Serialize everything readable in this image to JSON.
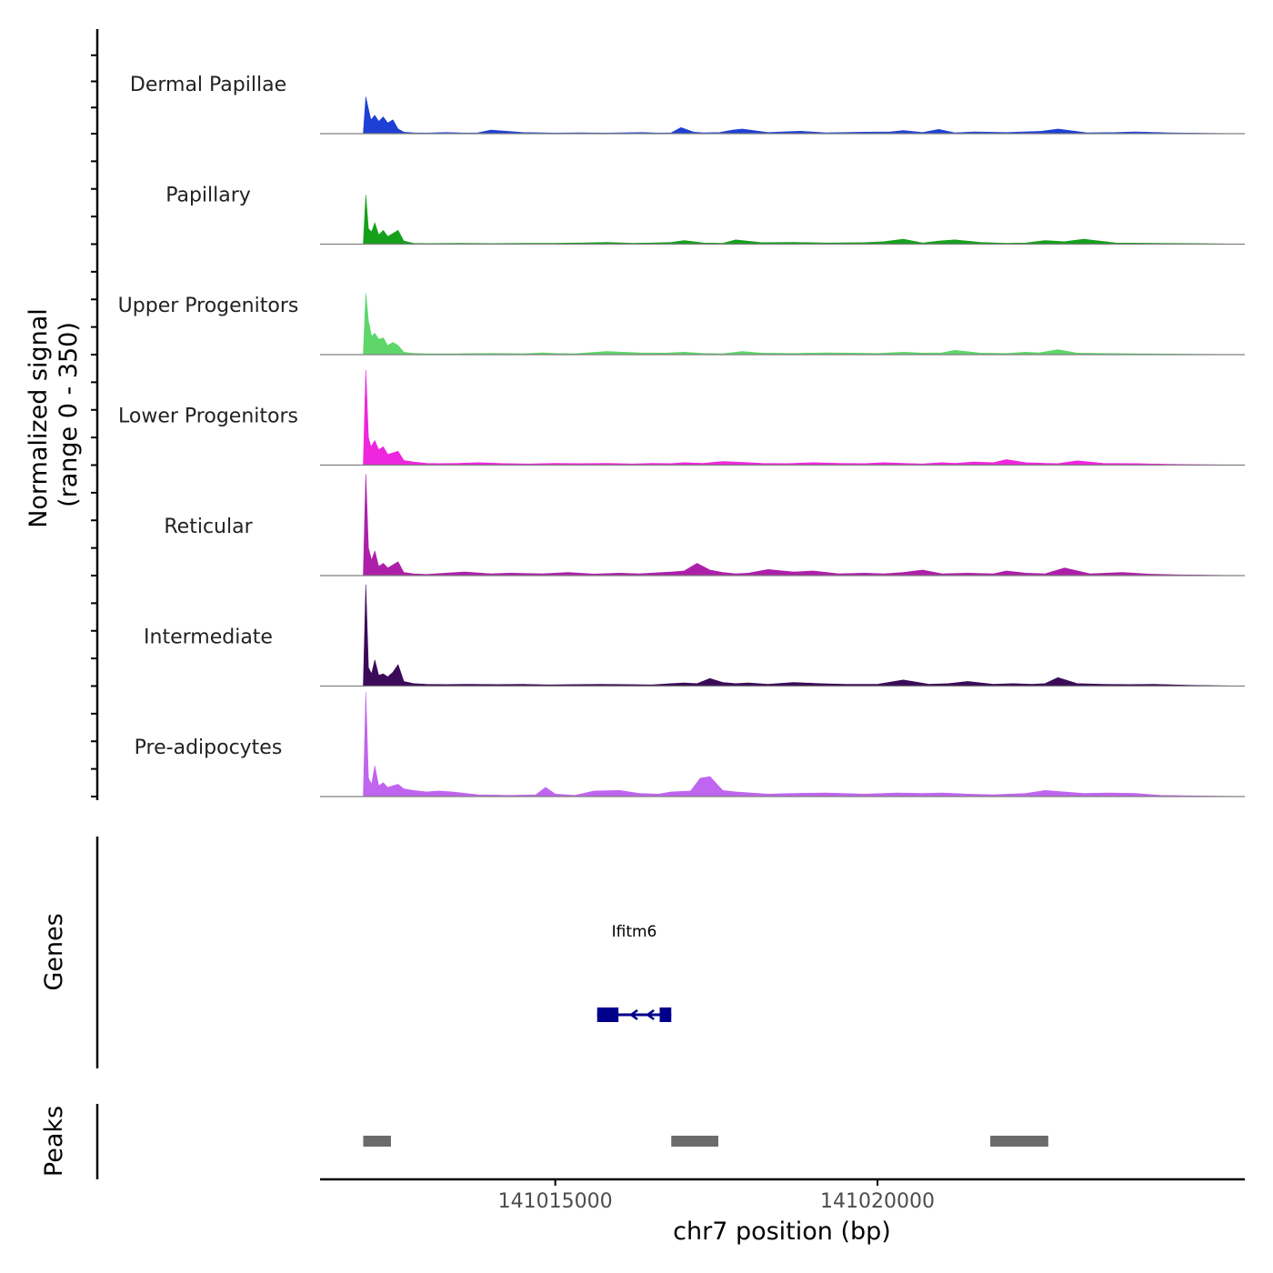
{
  "chart_data": {
    "type": "area",
    "title": "",
    "chromosome": "chr7",
    "xlabel": "chr7 position (bp)",
    "ylabel": "Normalized signal",
    "ylabel_range": "(range 0 - 350)",
    "xlim": [
      141011350,
      141025700
    ],
    "ylim": [
      0,
      350
    ],
    "x_ticks": [
      141015000,
      141020000
    ],
    "x_tick_labels": [
      "141015000",
      "141020000"
    ],
    "series": [
      {
        "name": "Dermal Papillae",
        "color": "#1f40d4",
        "x": [
          141012020,
          141012060,
          141012100,
          141012140,
          141012200,
          141012260,
          141012330,
          141012400,
          141012480,
          141012560,
          141012650,
          141012800,
          141013000,
          141013300,
          141013650,
          141013800,
          141014000,
          141014500,
          141014800,
          141015000,
          141015400,
          141015800,
          141016350,
          141016600,
          141016800,
          141016950,
          141017150,
          141017300,
          141017550,
          141017750,
          141017900,
          141018300,
          141018800,
          141019200,
          141019800,
          141020200,
          141020400,
          141020700,
          141020950,
          141021200,
          141021500,
          141022000,
          141022550,
          141022800,
          141023250,
          141023700,
          141024000,
          141024500,
          141025700
        ],
        "values": [
          0,
          120,
          80,
          45,
          60,
          40,
          55,
          35,
          45,
          15,
          5,
          3,
          2,
          4,
          2,
          3,
          12,
          4,
          3,
          2,
          3,
          2,
          4,
          2,
          3,
          20,
          5,
          3,
          4,
          12,
          15,
          4,
          8,
          3,
          5,
          6,
          10,
          4,
          14,
          3,
          6,
          4,
          8,
          15,
          3,
          4,
          6,
          3,
          0
        ]
      },
      {
        "name": "Papillary",
        "color": "#15a01b",
        "x": [
          141012020,
          141012060,
          141012100,
          141012150,
          141012200,
          141012260,
          141012330,
          141012400,
          141012480,
          141012560,
          141012650,
          141012800,
          141013000,
          141013500,
          141014000,
          141014500,
          141015000,
          141015400,
          141015800,
          141016200,
          141016500,
          141016800,
          141017000,
          141017300,
          141017600,
          141017800,
          141018200,
          141018700,
          141019200,
          141019800,
          141020100,
          141020400,
          141020700,
          141020950,
          141021200,
          141021600,
          141022000,
          141022300,
          141022600,
          141022900,
          141023200,
          141023700,
          141024300,
          141024900,
          141025700
        ],
        "values": [
          0,
          160,
          50,
          40,
          70,
          30,
          45,
          25,
          35,
          45,
          10,
          3,
          2,
          3,
          2,
          3,
          3,
          4,
          6,
          3,
          4,
          6,
          12,
          4,
          3,
          14,
          5,
          6,
          4,
          5,
          8,
          16,
          4,
          10,
          14,
          6,
          3,
          4,
          12,
          8,
          16,
          4,
          3,
          2,
          0
        ]
      },
      {
        "name": "Upper Progenitors",
        "color": "#5ed66a",
        "x": [
          141012020,
          141012060,
          141012100,
          141012150,
          141012200,
          141012260,
          141012330,
          141012400,
          141012480,
          141012560,
          141012650,
          141012800,
          141013000,
          141013500,
          141014000,
          141014500,
          141014800,
          141015000,
          141015300,
          141015800,
          141016300,
          141016700,
          141017000,
          141017300,
          141017600,
          141017900,
          141018200,
          141018700,
          141019200,
          141019600,
          141020000,
          141020400,
          141020700,
          141021000,
          141021200,
          141021600,
          141022000,
          141022300,
          141022500,
          141022800,
          141023100,
          141023500,
          141024000,
          141024500,
          141025700
        ],
        "values": [
          0,
          200,
          110,
          60,
          70,
          50,
          55,
          30,
          40,
          30,
          8,
          4,
          3,
          3,
          4,
          3,
          6,
          4,
          3,
          10,
          6,
          5,
          8,
          4,
          3,
          10,
          5,
          4,
          6,
          5,
          4,
          8,
          5,
          6,
          14,
          5,
          4,
          8,
          6,
          16,
          5,
          4,
          3,
          2,
          0
        ]
      },
      {
        "name": "Lower Progenitors",
        "color": "#ee26de",
        "x": [
          141012020,
          141012060,
          141012100,
          141012140,
          141012200,
          141012260,
          141012330,
          141012400,
          141012480,
          141012560,
          141012650,
          141012800,
          141013000,
          141013200,
          141013500,
          141013800,
          141014200,
          141014600,
          141015000,
          141015400,
          141015800,
          141016200,
          141016500,
          141016800,
          141017000,
          141017300,
          141017600,
          141018000,
          141018200,
          141018600,
          141019000,
          141019400,
          141019800,
          141020100,
          141020400,
          141020700,
          141021000,
          141021200,
          141021500,
          141021800,
          141022000,
          141022300,
          141022600,
          141022800,
          141023100,
          141023500,
          141024000,
          141024500,
          141025700
        ],
        "values": [
          0,
          310,
          90,
          60,
          80,
          50,
          60,
          35,
          40,
          45,
          15,
          10,
          6,
          5,
          6,
          8,
          5,
          4,
          6,
          5,
          6,
          4,
          6,
          5,
          8,
          6,
          12,
          8,
          6,
          5,
          8,
          6,
          5,
          8,
          6,
          4,
          8,
          6,
          10,
          8,
          18,
          8,
          6,
          5,
          14,
          6,
          5,
          3,
          0
        ]
      },
      {
        "name": "Reticular",
        "color": "#ad1fa9",
        "x": [
          141012020,
          141012060,
          141012100,
          141012150,
          141012200,
          141012260,
          141012330,
          141012400,
          141012480,
          141012560,
          141012650,
          141012800,
          141013000,
          141013300,
          141013600,
          141014000,
          141014300,
          141014800,
          141015200,
          141015600,
          141016000,
          141016300,
          141016800,
          141017000,
          141017200,
          141017400,
          141017600,
          141017800,
          141018000,
          141018300,
          141018700,
          141019000,
          141019400,
          141019800,
          141020100,
          141020400,
          141020700,
          141021000,
          141021400,
          141021800,
          141022000,
          141022300,
          141022600,
          141022900,
          141023300,
          141023800,
          141024200,
          141024600,
          141025700
        ],
        "values": [
          0,
          330,
          90,
          50,
          80,
          30,
          40,
          25,
          35,
          45,
          10,
          6,
          4,
          8,
          12,
          6,
          8,
          6,
          10,
          5,
          8,
          6,
          12,
          15,
          40,
          18,
          10,
          6,
          8,
          20,
          12,
          15,
          6,
          8,
          6,
          10,
          18,
          6,
          8,
          6,
          15,
          8,
          6,
          25,
          6,
          10,
          5,
          3,
          0
        ]
      },
      {
        "name": "Intermediate",
        "color": "#3b0b59",
        "x": [
          141012020,
          141012060,
          141012100,
          141012150,
          141012200,
          141012260,
          141012330,
          141012400,
          141012480,
          141012560,
          141012650,
          141012800,
          141013000,
          141013300,
          141013700,
          141014100,
          141014500,
          141014900,
          141015300,
          141015700,
          141016100,
          141016500,
          141016800,
          141017000,
          141017200,
          141017400,
          141017600,
          141017800,
          141018000,
          141018300,
          141018700,
          141019100,
          141019500,
          141020000,
          141020400,
          141020800,
          141021100,
          141021400,
          141021800,
          141022100,
          141022400,
          141022600,
          141022800,
          141023100,
          141023500,
          141023900,
          141024300,
          141024800,
          141025700
        ],
        "values": [
          0,
          330,
          60,
          40,
          85,
          35,
          40,
          30,
          45,
          70,
          15,
          8,
          6,
          5,
          6,
          5,
          6,
          4,
          5,
          6,
          5,
          4,
          8,
          10,
          8,
          25,
          12,
          8,
          10,
          6,
          12,
          8,
          6,
          6,
          20,
          6,
          8,
          15,
          6,
          8,
          6,
          8,
          28,
          8,
          6,
          5,
          6,
          3,
          0
        ]
      },
      {
        "name": "Pre-adipocytes",
        "color": "#c065ef",
        "x": [
          141012020,
          141012060,
          141012100,
          141012150,
          141012200,
          141012260,
          141012330,
          141012400,
          141012480,
          141012560,
          141012650,
          141012800,
          141013000,
          141013200,
          141013400,
          141013800,
          141014300,
          141014700,
          141014850,
          141015000,
          141015300,
          141015600,
          141016000,
          141016300,
          141016600,
          141016800,
          141017100,
          141017250,
          141017400,
          141017600,
          141017800,
          141018300,
          141018700,
          141019200,
          141019800,
          141020300,
          141020700,
          141021000,
          141021400,
          141021800,
          141022300,
          141022600,
          141022900,
          141023200,
          141023600,
          141024000,
          141024400,
          141025700
        ],
        "values": [
          0,
          340,
          60,
          40,
          100,
          35,
          45,
          30,
          35,
          40,
          25,
          20,
          15,
          18,
          15,
          6,
          4,
          6,
          30,
          8,
          4,
          18,
          20,
          10,
          8,
          15,
          18,
          60,
          65,
          20,
          15,
          8,
          10,
          12,
          8,
          12,
          10,
          12,
          8,
          6,
          10,
          20,
          15,
          10,
          12,
          10,
          4,
          0
        ]
      }
    ],
    "genes_track": {
      "label": "Genes",
      "genes": [
        {
          "name": "Ifitm6",
          "start": 141015650,
          "end": 141016800,
          "strand": "-",
          "exons": [
            [
              141015650,
              141015980
            ],
            [
              141016620,
              141016800
            ]
          ],
          "color": "#00008b"
        }
      ]
    },
    "peaks_track": {
      "label": "Peaks",
      "color": "#6b6b6b",
      "peaks": [
        [
          141012020,
          141012450
        ],
        [
          141016800,
          141017530
        ],
        [
          141021750,
          141022650
        ]
      ]
    }
  }
}
